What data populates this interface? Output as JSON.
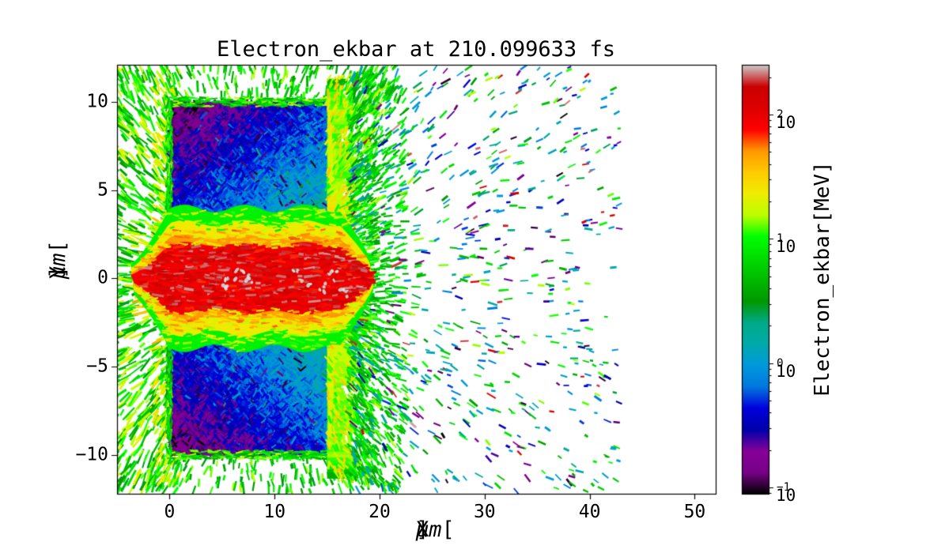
{
  "figure": {
    "background": "#ffffff"
  },
  "chart_data": {
    "type": "scatter",
    "title": "Electron_ekbar at 210.099633 fs",
    "quantity": "Electron_ekbar",
    "time_fs": 210.099633,
    "xlabel": {
      "pre": "X [",
      "unit": "μm",
      "post": "]"
    },
    "ylabel": {
      "pre": "Y [",
      "unit": "μm",
      "post": "]"
    },
    "xlim": [
      -5,
      52
    ],
    "ylim": [
      -12.2,
      12.1
    ],
    "xticks": [
      0,
      10,
      20,
      30,
      40,
      50
    ],
    "xtick_labels": [
      "0",
      "10",
      "20",
      "30",
      "40",
      "50"
    ],
    "yticks": [
      -10,
      -5,
      0,
      5,
      10
    ],
    "ytick_labels": [
      "−10",
      "−5",
      "0",
      "5",
      "10"
    ],
    "grid": false,
    "legend": "none",
    "colorbar": {
      "label": "Electron_ekbar[MeV]",
      "scale": "log",
      "vmin": 0.089,
      "vmax": 251,
      "tick_base": "10",
      "tick_exponents": [
        -1,
        0,
        1,
        2
      ],
      "tick_exponent_labels": [
        "−1",
        "0",
        "1",
        "2"
      ],
      "colormap": "nipy_spectral",
      "colormap_stops": [
        [
          0.0,
          "#000000"
        ],
        [
          0.05,
          "#770088"
        ],
        [
          0.1,
          "#880099"
        ],
        [
          0.15,
          "#0000aa"
        ],
        [
          0.2,
          "#0000dd"
        ],
        [
          0.25,
          "#0077dd"
        ],
        [
          0.3,
          "#0099dd"
        ],
        [
          0.35,
          "#00aaaa"
        ],
        [
          0.4,
          "#00aa88"
        ],
        [
          0.45,
          "#009900"
        ],
        [
          0.5,
          "#00bb00"
        ],
        [
          0.55,
          "#00dd00"
        ],
        [
          0.6,
          "#00ff00"
        ],
        [
          0.65,
          "#bbff00"
        ],
        [
          0.7,
          "#eeee00"
        ],
        [
          0.75,
          "#ffcc00"
        ],
        [
          0.8,
          "#ff9900"
        ],
        [
          0.85,
          "#ff0000"
        ],
        [
          0.9,
          "#dd0000"
        ],
        [
          0.95,
          "#cc0000"
        ],
        [
          1.0,
          "#cccccc"
        ]
      ]
    },
    "scene": {
      "description": "Pseudocolor particle map of mean electron kinetic energy: a red-hot laser-bored channel (~60-250 MeV) along y=0 drilled through a two-block target (cold bulk 0.1-2.5 MeV shown purple/blue/cyan), yellow-orange heated block surfaces and rear sheath, green MeV-scale electron spray fanning out front and rear, and sparse energetic multicolored streaks ejected beyond the target rear out to x≈43 μm.",
      "target_blocks": [
        {
          "x": [
            0,
            15
          ],
          "y": [
            2.5,
            10
          ],
          "bulk_energy_MeV": [
            0.12,
            2.3
          ]
        },
        {
          "x": [
            0,
            15
          ],
          "y": [
            -10,
            -2.5
          ],
          "bulk_energy_MeV": [
            0.12,
            2.3
          ]
        }
      ],
      "channel": {
        "x": [
          -3.7,
          19.4
        ],
        "y_halfwidth_um": 2.0,
        "core_energy_MeV": [
          60,
          230
        ],
        "sheath_energy_MeV": [
          15,
          60
        ],
        "hotspots_MeV": 260,
        "hotspots_xy": [
          [
            5.3,
            -0.3
          ],
          [
            6.6,
            0.2
          ],
          [
            7.6,
            -0.1
          ],
          [
            11.7,
            0.3
          ],
          [
            12.9,
            -0.25
          ],
          [
            14.6,
            -0.5
          ],
          [
            15.6,
            0.15
          ],
          [
            16.4,
            -0.9
          ]
        ]
      },
      "rear_sheath": {
        "x": [
          15,
          17.6
        ],
        "y": [
          -11.3,
          11.3
        ],
        "energy_MeV": [
          12,
          60
        ]
      },
      "front_spray": {
        "x": [
          -5,
          1
        ],
        "energy_MeV": [
          3,
          30
        ]
      },
      "rear_spray": {
        "x": [
          17,
          43
        ],
        "energy_MeV": [
          0.09,
          250
        ]
      }
    }
  }
}
